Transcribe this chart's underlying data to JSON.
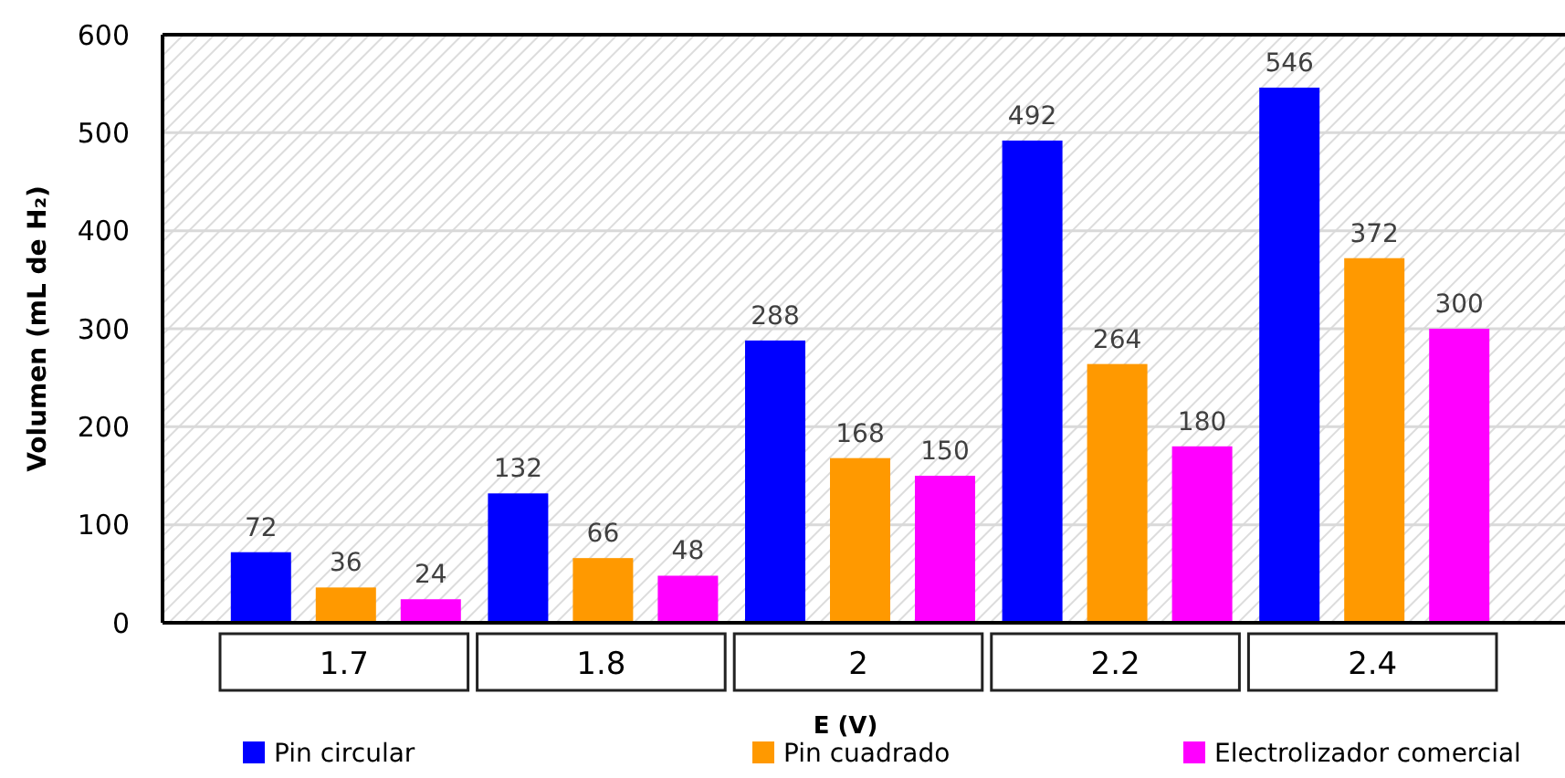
{
  "chart_data": {
    "type": "bar",
    "xlabel": "E (V)",
    "ylabel": "Volumen (mL de H₂)",
    "categories": [
      "1.7",
      "1.8",
      "2",
      "2.2",
      "2.4"
    ],
    "series": [
      {
        "name": "Pin circular",
        "color": "#0000ff",
        "values": [
          72,
          132,
          288,
          492,
          546
        ]
      },
      {
        "name": "Pin cuadrado",
        "color": "#ff9900",
        "values": [
          36,
          66,
          168,
          264,
          372
        ]
      },
      {
        "name": "Electrolizador comercial",
        "color": "#ff00ff",
        "values": [
          24,
          48,
          150,
          180,
          300
        ]
      }
    ],
    "ylim": [
      0,
      600
    ],
    "yticks": [
      0,
      100,
      200,
      300,
      400,
      500,
      600
    ],
    "grid": "y",
    "data_labels": true,
    "legend": "bottom"
  }
}
